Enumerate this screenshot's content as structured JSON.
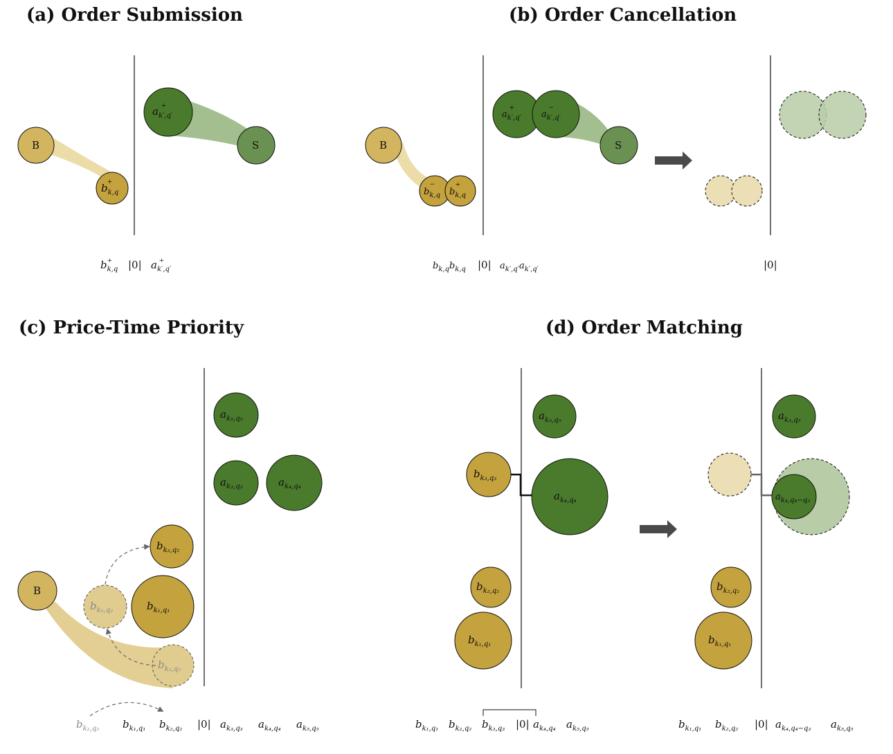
{
  "panels": {
    "a": {
      "title": "(a) Order Submission",
      "buyer_label": "B",
      "seller_label": "S",
      "bid_label": "b",
      "bid_sub": "k,q",
      "ask_label": "a",
      "ask_sub": "k′,q′",
      "sup_plus": "+",
      "book_bid": "b",
      "book_bid_sub": "k,q",
      "book_zero": "|0|",
      "book_ask": "a",
      "book_ask_sub": "k′,q′"
    },
    "b": {
      "title": "(b) Order Cancellation",
      "buyer_label": "B",
      "seller_label": "S",
      "bid_minus_label": "b",
      "bid_minus_sub": "k,q",
      "bid_plus_label": "b",
      "bid_plus_sub": "k,q",
      "ask_plus_label": "a",
      "ask_plus_sub": "k′,q′",
      "ask_minus_label": "a",
      "ask_minus_sub": "k′,q′",
      "sup_plus": "+",
      "sup_minus": "−",
      "book_left": "b",
      "book_left_sub1": "k,q",
      "book_left_sub2": "k,q",
      "book_zero": "|0|",
      "book_right_sub1": "k′,q′",
      "book_right_sub2": "k′,q′",
      "book_after_zero": "|0|"
    },
    "c": {
      "title": "(c) Price-Time Priority",
      "buyer_label": "B",
      "b_k2q2": "b",
      "b_k2q2_sub": "k₂,q₂",
      "b_k1q1": "b",
      "b_k1q1_sub": "k₁,q₁",
      "a_k5q5": "a",
      "a_k5q5_sub": "k₅,q₅",
      "a_k3q3": "a",
      "a_k3q3_sub": "k₃,q₃",
      "a_k4q4": "a",
      "a_k4q4_sub": "k₄,q₄",
      "sup_plus": "+",
      "book_zero": "|0|"
    },
    "d": {
      "title": "(d) Order Matching",
      "b_k3q3_sub": "k₃,q₃",
      "b_k2q2_sub": "k₂,q₂",
      "b_k1q1_sub": "k₁,q₁",
      "a_k5q5_sub": "k₅,q₅",
      "a_k4q4_sub": "k₄,q₄",
      "a_k4q4q3_sub": "k₄,q₄−q₃",
      "sup_plus": "+",
      "book_zero": "|0|"
    }
  },
  "colors": {
    "bid": "#c4a23d",
    "bid_light": "#d9be6e",
    "bid_faded": "#ecdfb6",
    "ask": "#4a7a2c",
    "ask_mid": "#6a9152",
    "ask_faded": "#b8cca7",
    "line": "#111111",
    "arrow": "#4a4a4a"
  },
  "icons": {
    "transition_arrow": "right-arrow-icon"
  }
}
